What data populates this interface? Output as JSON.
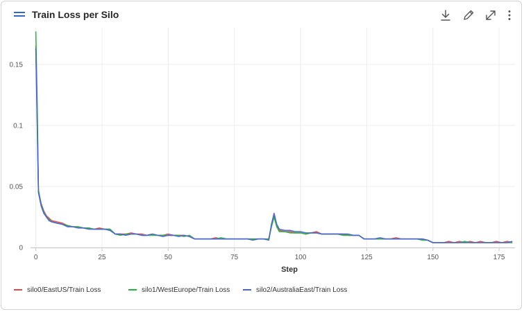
{
  "header": {
    "title": "Train Loss per Silo",
    "icons": [
      "menu-icon",
      "download-icon",
      "edit-icon",
      "expand-icon",
      "more-vertical-icon"
    ]
  },
  "colors": {
    "accent": "#2f66c7",
    "grid": "#ececec",
    "axis": "#c8c8c8"
  },
  "chart_data": {
    "type": "line",
    "title": "Train Loss per Silo",
    "xlabel": "Step",
    "ylabel": "",
    "xlim": [
      -2,
      181
    ],
    "ylim": [
      0,
      0.18
    ],
    "xticks": [
      0,
      25,
      50,
      75,
      100,
      125,
      150,
      175
    ],
    "yticks": [
      0,
      0.05,
      0.1,
      0.15
    ],
    "ytick_labels": [
      "0",
      "0.05",
      "0.1",
      "0.15"
    ],
    "grid": true,
    "legend": "bottom",
    "series": [
      {
        "name": "silo0/EastUS/Train Loss",
        "color": "#e8474a",
        "x": [
          0,
          0.5,
          1,
          2,
          3,
          4,
          5,
          6,
          8,
          10,
          12,
          14,
          16,
          18,
          20,
          22,
          24,
          26,
          28,
          30,
          32,
          34,
          36,
          38,
          40,
          42,
          44,
          46,
          48,
          50,
          52,
          54,
          56,
          58,
          60,
          62,
          64,
          66,
          68,
          70,
          72,
          74,
          76,
          78,
          80,
          82,
          84,
          86,
          88,
          89,
          90,
          91,
          92,
          94,
          96,
          98,
          100,
          102,
          104,
          106,
          108,
          110,
          112,
          114,
          116,
          118,
          120,
          122,
          124,
          126,
          128,
          130,
          132,
          134,
          136,
          138,
          140,
          142,
          144,
          146,
          148,
          150,
          152,
          154,
          156,
          158,
          160,
          162,
          164,
          166,
          168,
          170,
          172,
          174,
          176,
          178,
          180
        ],
        "y": [
          0.165,
          0.11,
          0.046,
          0.036,
          0.03,
          0.026,
          0.024,
          0.022,
          0.021,
          0.02,
          0.018,
          0.017,
          0.017,
          0.016,
          0.016,
          0.015,
          0.016,
          0.015,
          0.015,
          0.011,
          0.011,
          0.011,
          0.012,
          0.011,
          0.011,
          0.01,
          0.011,
          0.01,
          0.01,
          0.011,
          0.01,
          0.01,
          0.01,
          0.009,
          0.007,
          0.007,
          0.007,
          0.007,
          0.008,
          0.007,
          0.007,
          0.007,
          0.007,
          0.007,
          0.007,
          0.007,
          0.007,
          0.007,
          0.007,
          0.018,
          0.026,
          0.018,
          0.014,
          0.013,
          0.013,
          0.012,
          0.012,
          0.011,
          0.012,
          0.013,
          0.011,
          0.011,
          0.011,
          0.011,
          0.011,
          0.01,
          0.01,
          0.01,
          0.007,
          0.007,
          0.007,
          0.007,
          0.007,
          0.007,
          0.008,
          0.007,
          0.007,
          0.007,
          0.007,
          0.007,
          0.006,
          0.004,
          0.004,
          0.004,
          0.005,
          0.004,
          0.005,
          0.004,
          0.005,
          0.004,
          0.005,
          0.004,
          0.004,
          0.005,
          0.004,
          0.005,
          0.004
        ]
      },
      {
        "name": "silo1/WestEurope/Train Loss",
        "color": "#22b53a",
        "x": [
          0,
          0.5,
          1,
          2,
          3,
          4,
          5,
          6,
          8,
          10,
          12,
          14,
          16,
          18,
          20,
          22,
          24,
          26,
          28,
          30,
          32,
          34,
          36,
          38,
          40,
          42,
          44,
          46,
          48,
          50,
          52,
          54,
          56,
          58,
          60,
          62,
          64,
          66,
          68,
          70,
          72,
          74,
          76,
          78,
          80,
          82,
          84,
          86,
          88,
          89,
          90,
          91,
          92,
          94,
          96,
          98,
          100,
          102,
          104,
          106,
          108,
          110,
          112,
          114,
          116,
          118,
          120,
          122,
          124,
          126,
          128,
          130,
          132,
          134,
          136,
          138,
          140,
          142,
          144,
          146,
          148,
          150,
          152,
          154,
          156,
          158,
          160,
          162,
          164,
          166,
          168,
          170,
          172,
          174,
          176,
          178,
          180
        ],
        "y": [
          0.177,
          0.12,
          0.047,
          0.035,
          0.029,
          0.025,
          0.023,
          0.021,
          0.02,
          0.019,
          0.018,
          0.017,
          0.017,
          0.016,
          0.016,
          0.015,
          0.015,
          0.015,
          0.015,
          0.011,
          0.01,
          0.011,
          0.011,
          0.011,
          0.01,
          0.01,
          0.01,
          0.01,
          0.01,
          0.01,
          0.01,
          0.01,
          0.009,
          0.01,
          0.007,
          0.007,
          0.007,
          0.007,
          0.007,
          0.008,
          0.007,
          0.007,
          0.007,
          0.007,
          0.007,
          0.007,
          0.007,
          0.007,
          0.007,
          0.017,
          0.025,
          0.017,
          0.013,
          0.013,
          0.012,
          0.012,
          0.012,
          0.011,
          0.012,
          0.012,
          0.011,
          0.011,
          0.011,
          0.011,
          0.01,
          0.01,
          0.01,
          0.01,
          0.007,
          0.007,
          0.007,
          0.007,
          0.007,
          0.007,
          0.007,
          0.007,
          0.007,
          0.007,
          0.007,
          0.006,
          0.006,
          0.004,
          0.004,
          0.004,
          0.004,
          0.004,
          0.004,
          0.005,
          0.004,
          0.004,
          0.004,
          0.004,
          0.004,
          0.004,
          0.004,
          0.004,
          0.004
        ]
      },
      {
        "name": "silo2/AustraliaEast/Train Loss",
        "color": "#4a63d8",
        "x": [
          0,
          0.5,
          1,
          2,
          3,
          4,
          5,
          6,
          8,
          10,
          12,
          14,
          16,
          18,
          20,
          22,
          24,
          26,
          28,
          30,
          32,
          34,
          36,
          38,
          40,
          42,
          44,
          46,
          48,
          50,
          52,
          54,
          56,
          58,
          60,
          62,
          64,
          66,
          68,
          70,
          72,
          74,
          76,
          78,
          80,
          82,
          84,
          86,
          88,
          89,
          90,
          91,
          92,
          94,
          96,
          98,
          100,
          102,
          104,
          106,
          108,
          110,
          112,
          114,
          116,
          118,
          120,
          122,
          124,
          126,
          128,
          130,
          132,
          134,
          136,
          138,
          140,
          142,
          144,
          146,
          148,
          150,
          152,
          154,
          156,
          158,
          160,
          162,
          164,
          166,
          168,
          170,
          172,
          174,
          176,
          178,
          180
        ],
        "y": [
          0.163,
          0.105,
          0.045,
          0.034,
          0.028,
          0.025,
          0.022,
          0.021,
          0.02,
          0.019,
          0.017,
          0.017,
          0.016,
          0.016,
          0.015,
          0.015,
          0.015,
          0.015,
          0.014,
          0.011,
          0.011,
          0.01,
          0.011,
          0.011,
          0.01,
          0.01,
          0.011,
          0.01,
          0.009,
          0.01,
          0.01,
          0.009,
          0.01,
          0.009,
          0.007,
          0.007,
          0.007,
          0.007,
          0.007,
          0.007,
          0.007,
          0.007,
          0.007,
          0.007,
          0.007,
          0.006,
          0.007,
          0.007,
          0.006,
          0.019,
          0.028,
          0.019,
          0.015,
          0.014,
          0.014,
          0.013,
          0.013,
          0.012,
          0.012,
          0.012,
          0.011,
          0.011,
          0.011,
          0.011,
          0.011,
          0.011,
          0.01,
          0.01,
          0.007,
          0.007,
          0.007,
          0.008,
          0.007,
          0.007,
          0.007,
          0.007,
          0.007,
          0.007,
          0.007,
          0.007,
          0.006,
          0.004,
          0.004,
          0.004,
          0.004,
          0.004,
          0.004,
          0.004,
          0.004,
          0.004,
          0.004,
          0.004,
          0.004,
          0.004,
          0.004,
          0.004,
          0.005
        ]
      }
    ]
  }
}
